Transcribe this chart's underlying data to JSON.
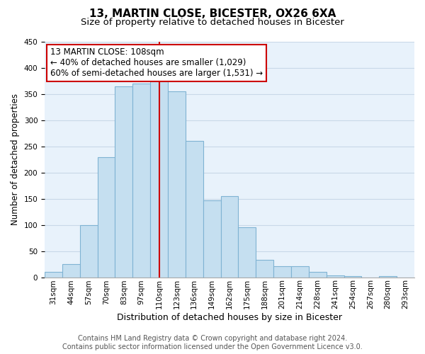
{
  "title1": "13, MARTIN CLOSE, BICESTER, OX26 6XA",
  "title2": "Size of property relative to detached houses in Bicester",
  "xlabel": "Distribution of detached houses by size in Bicester",
  "ylabel": "Number of detached properties",
  "footer1": "Contains HM Land Registry data © Crown copyright and database right 2024.",
  "footer2": "Contains public sector information licensed under the Open Government Licence v3.0.",
  "bin_labels": [
    "31sqm",
    "44sqm",
    "57sqm",
    "70sqm",
    "83sqm",
    "97sqm",
    "110sqm",
    "123sqm",
    "136sqm",
    "149sqm",
    "162sqm",
    "175sqm",
    "188sqm",
    "201sqm",
    "214sqm",
    "228sqm",
    "241sqm",
    "254sqm",
    "267sqm",
    "280sqm",
    "293sqm"
  ],
  "bar_heights": [
    10,
    25,
    100,
    230,
    365,
    370,
    375,
    355,
    260,
    147,
    155,
    95,
    33,
    21,
    21,
    10,
    4,
    2,
    0,
    2,
    0
  ],
  "bar_color": "#c5dff0",
  "bar_edge_color": "#7fb3d3",
  "annotation_line1": "13 MARTIN CLOSE: 108sqm",
  "annotation_line2": "← 40% of detached houses are smaller (1,029)",
  "annotation_line3": "60% of semi-detached houses are larger (1,531) →",
  "vline_x_index": 6,
  "vline_color": "#cc0000",
  "ylim": [
    0,
    450
  ],
  "yticks": [
    0,
    50,
    100,
    150,
    200,
    250,
    300,
    350,
    400,
    450
  ],
  "annotation_fontsize": 8.5,
  "title1_fontsize": 11,
  "title2_fontsize": 9.5,
  "xlabel_fontsize": 9,
  "ylabel_fontsize": 8.5,
  "tick_fontsize": 7.5,
  "footer_fontsize": 7,
  "grid_color": "#c8d8e8",
  "background_color": "#e8f2fb"
}
